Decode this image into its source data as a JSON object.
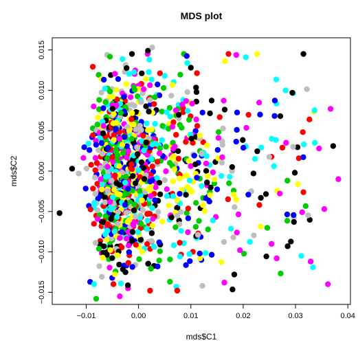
{
  "chart_data": {
    "type": "scatter",
    "title": "MDS plot",
    "xlabel": "mds$C1",
    "ylabel": "mds$C2",
    "xlim": [
      -0.0165,
      0.0405
    ],
    "ylim": [
      -0.0165,
      0.0165
    ],
    "x_ticks": [
      -0.01,
      0.0,
      0.01,
      0.02,
      0.03,
      0.04
    ],
    "y_ticks": [
      -0.015,
      -0.01,
      -0.005,
      0.0,
      0.005,
      0.01,
      0.015
    ],
    "x_tick_labels": [
      "−0.01",
      "0.00",
      "0.01",
      "0.02",
      "0.03",
      "0.04"
    ],
    "y_tick_labels": [
      "−0.015",
      "−0.010",
      "−0.005",
      "0.000",
      "0.005",
      "0.010",
      "0.015"
    ],
    "grid": false,
    "colors": [
      "#000000",
      "#ff0000",
      "#00cc00",
      "#0000ff",
      "#00ffff",
      "#ff00ff",
      "#ffff00",
      "#bebebe"
    ],
    "point_count": 1400,
    "points": [
      {
        "x": -0.0081,
        "y": -0.0158,
        "c": 2
      },
      {
        "x": 0.0022,
        "y": -0.0148,
        "c": 1
      },
      {
        "x": 0.0074,
        "y": -0.0148,
        "c": 1
      },
      {
        "x": 0.0122,
        "y": -0.0142,
        "c": 7
      },
      {
        "x": 0.0362,
        "y": -0.014,
        "c": 5
      },
      {
        "x": -0.0151,
        "y": -0.0052,
        "c": 0
      },
      {
        "x": -0.0127,
        "y": 0.0003,
        "c": 0
      },
      {
        "x": 0.0018,
        "y": 0.0149,
        "c": 0
      },
      {
        "x": 0.0026,
        "y": 0.0153,
        "c": 7
      },
      {
        "x": 0.01,
        "y": 0.0128,
        "c": 0
      },
      {
        "x": 0.0281,
        "y": 0.01,
        "c": 4
      },
      {
        "x": 0.0294,
        "y": 0.0097,
        "c": 0
      },
      {
        "x": 0.0367,
        "y": 0.0077,
        "c": 5
      },
      {
        "x": 0.0271,
        "y": 0.0068,
        "c": 0
      },
      {
        "x": 0.0345,
        "y": 0.0028,
        "c": 5
      },
      {
        "x": 0.0372,
        "y": 0.0031,
        "c": 0
      },
      {
        "x": 0.0337,
        "y": 0.0035,
        "c": 4
      },
      {
        "x": 0.0382,
        "y": -0.001,
        "c": 5
      },
      {
        "x": 0.0355,
        "y": -0.0047,
        "c": 5
      },
      {
        "x": 0.0297,
        "y": -0.0063,
        "c": 0
      },
      {
        "x": 0.0285,
        "y": -0.0093,
        "c": 0
      },
      {
        "x": 0.0311,
        "y": -0.0105,
        "c": 4
      },
      {
        "x": 0.0264,
        "y": -0.0108,
        "c": 5
      },
      {
        "x": 0.0183,
        "y": -0.0128,
        "c": 0
      },
      {
        "x": 0.0164,
        "y": -0.0138,
        "c": 5
      },
      {
        "x": 0.006,
        "y": -0.0137,
        "c": 2
      },
      {
        "x": -0.0085,
        "y": -0.014,
        "c": 4
      },
      {
        "x": 0.0275,
        "y": 0.0029,
        "c": 1
      },
      {
        "x": 0.0282,
        "y": 0.0035,
        "c": 5
      },
      {
        "x": 0.0316,
        "y": 0.0033,
        "c": 4
      }
    ]
  }
}
